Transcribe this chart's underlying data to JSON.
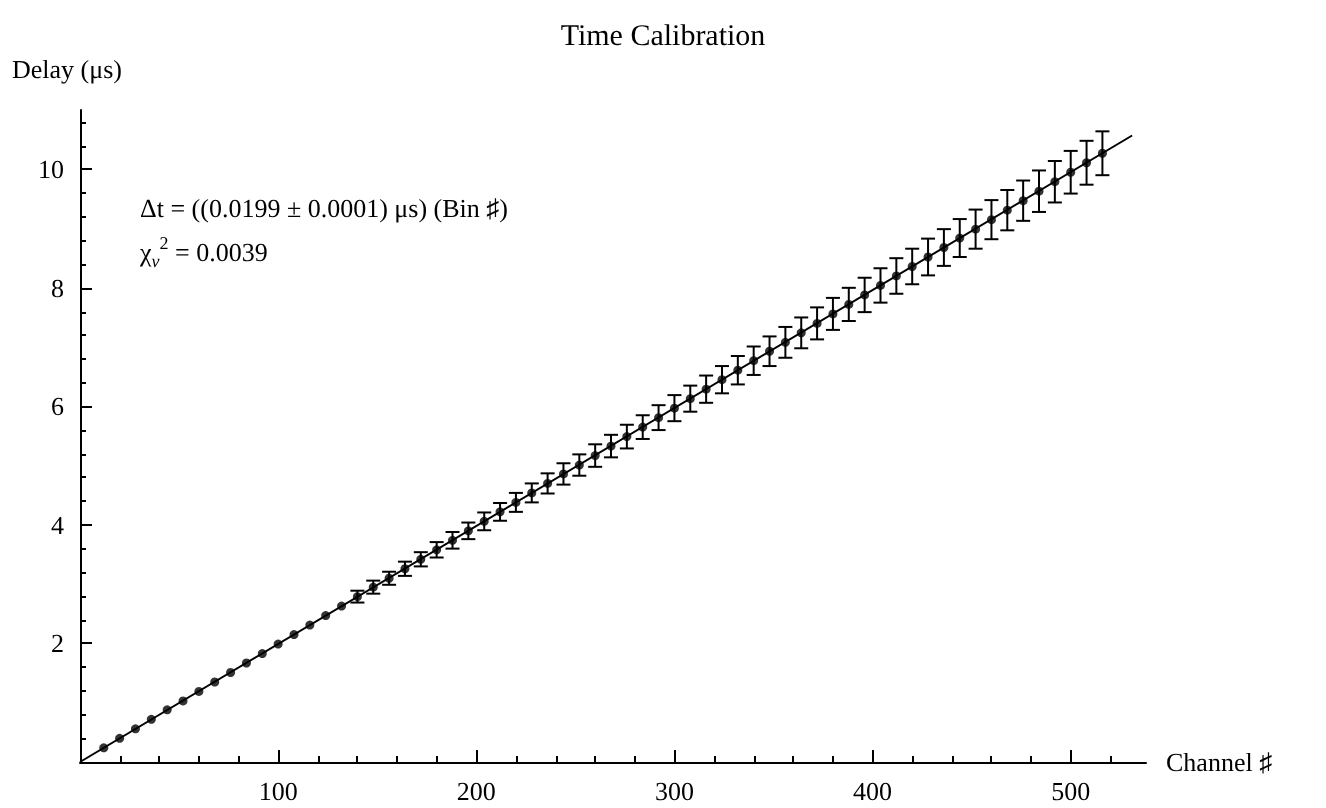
{
  "chart_data": {
    "type": "scatter",
    "title": "Time Calibration",
    "xlabel": "Channel ♯",
    "ylabel": "Delay (μs)",
    "annotations": [
      "Δt = ((0.0199 ± 0.0001) μs) (Bin ♯)",
      "χ$_{ν}$$^{2}$ = 0.0039"
    ],
    "xlim": [
      0,
      538
    ],
    "xticks": [
      100,
      200,
      300,
      400,
      500
    ],
    "ylim": [
      0,
      11
    ],
    "yticks": [
      2,
      4,
      6,
      8,
      10
    ],
    "grid": false,
    "marker": "circle",
    "series": [
      {
        "color": "#000000",
        "x": [
          12,
          20,
          28,
          36,
          44,
          52,
          60,
          68,
          76,
          84,
          92,
          100,
          108,
          116,
          124,
          132,
          140,
          148,
          156,
          164,
          172,
          180,
          188,
          196,
          204,
          212,
          220,
          228,
          236,
          244,
          252,
          260,
          268,
          276,
          284,
          292,
          300,
          308,
          316,
          324,
          332,
          340,
          348,
          356,
          364,
          372,
          380,
          388,
          396,
          404,
          412,
          420,
          428,
          436,
          444,
          452,
          460,
          468,
          476,
          484,
          492,
          500,
          508,
          516
        ],
        "values": [
          0.24,
          0.4,
          0.56,
          0.72,
          0.88,
          1.03,
          1.19,
          1.35,
          1.51,
          1.67,
          1.83,
          1.99,
          2.15,
          2.31,
          2.47,
          2.63,
          2.79,
          2.95,
          3.1,
          3.26,
          3.42,
          3.58,
          3.74,
          3.9,
          4.06,
          4.22,
          4.38,
          4.54,
          4.7,
          4.86,
          5.01,
          5.17,
          5.33,
          5.49,
          5.65,
          5.81,
          5.97,
          6.13,
          6.29,
          6.45,
          6.61,
          6.77,
          6.93,
          7.08,
          7.24,
          7.4,
          7.56,
          7.72,
          7.88,
          8.04,
          8.2,
          8.36,
          8.52,
          8.68,
          8.84,
          8.99,
          9.15,
          9.31,
          9.47,
          9.63,
          9.79,
          9.95,
          10.11,
          10.27
        ],
        "errors": [
          null,
          null,
          null,
          null,
          null,
          null,
          null,
          null,
          null,
          null,
          null,
          null,
          null,
          null,
          null,
          null,
          0.1,
          0.11,
          0.11,
          0.12,
          0.12,
          0.13,
          0.14,
          0.14,
          0.15,
          0.15,
          0.16,
          0.16,
          0.17,
          0.18,
          0.18,
          0.19,
          0.19,
          0.2,
          0.2,
          0.21,
          0.22,
          0.22,
          0.23,
          0.23,
          0.24,
          0.24,
          0.25,
          0.26,
          0.26,
          0.27,
          0.27,
          0.28,
          0.29,
          0.29,
          0.3,
          0.3,
          0.31,
          0.31,
          0.32,
          0.33,
          0.33,
          0.34,
          0.34,
          0.35,
          0.35,
          0.36,
          0.37,
          0.37
        ]
      },
      {
        "type": "line",
        "marker": "none",
        "color": "#000000",
        "x": [
          0,
          531
        ],
        "values": [
          0,
          10.57
        ]
      }
    ]
  }
}
